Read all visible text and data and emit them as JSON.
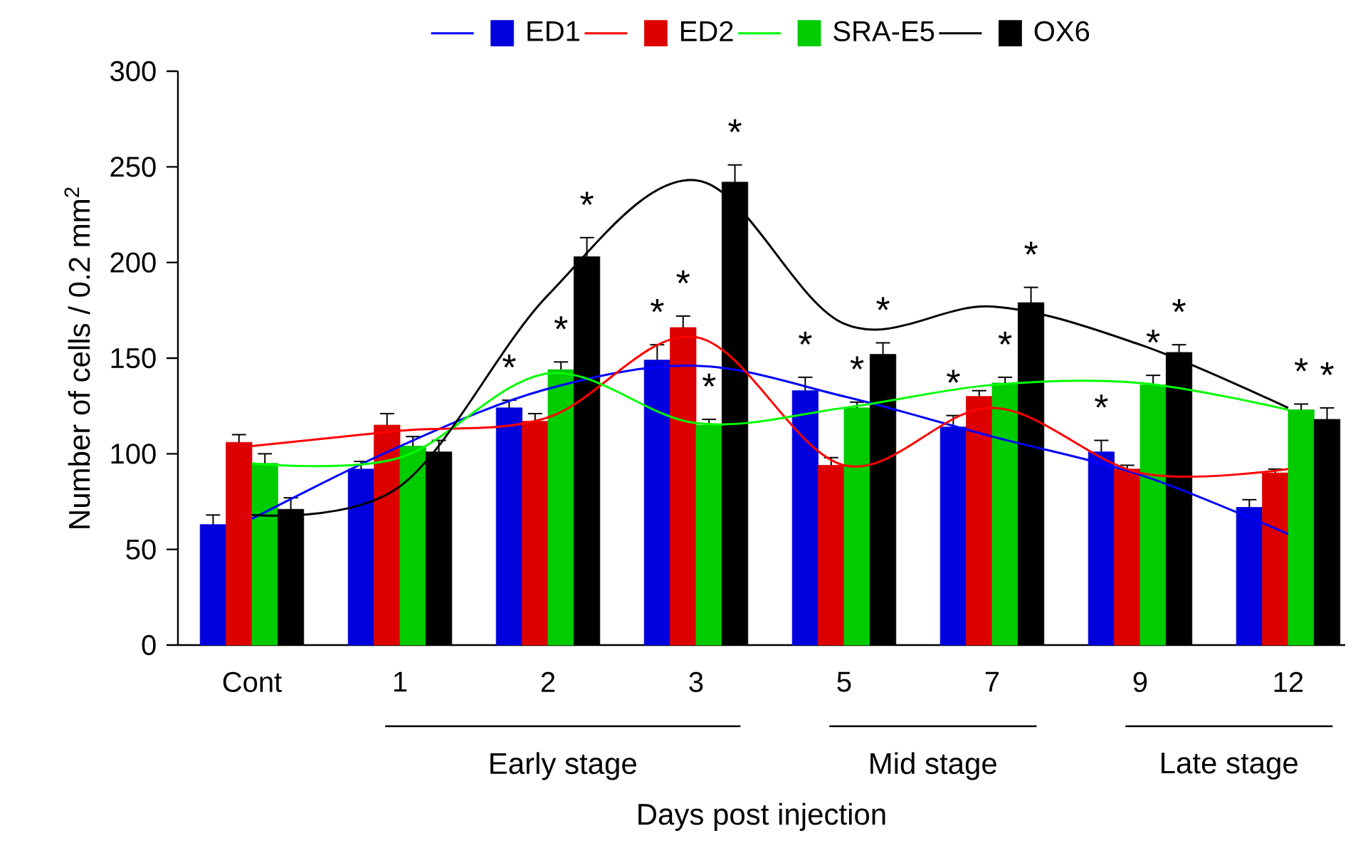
{
  "chart_data": {
    "type": "bar",
    "categories": [
      "Cont",
      "1",
      "2",
      "3",
      "5",
      "7",
      "9",
      "12"
    ],
    "xlabel": "Days post injection",
    "ylabel": "Number of cells / 0.2 mm$^{2}$",
    "ylim": [
      0,
      300
    ],
    "yticks": [
      0,
      50,
      100,
      150,
      200,
      250,
      300
    ],
    "legend": "top",
    "annotations": [
      "Early stage",
      "Mid stage",
      "Late stage"
    ],
    "series": [
      {
        "name": "ED1",
        "color": "#0000dd",
        "values": [
          63,
          92,
          124,
          149,
          133,
          114,
          101,
          72
        ],
        "errors": [
          5,
          4,
          4,
          8,
          7,
          6,
          6,
          4
        ],
        "value_labels": [
          null,
          null,
          "*",
          "*",
          "*",
          "*",
          "*",
          null
        ]
      },
      {
        "name": "ED2",
        "color": "#dd0000",
        "values": [
          106,
          115,
          117,
          166,
          94,
          130,
          92,
          90
        ],
        "errors": [
          4,
          6,
          4,
          6,
          4,
          3,
          2,
          2
        ],
        "value_labels": [
          null,
          null,
          null,
          "*",
          null,
          null,
          null,
          null
        ]
      },
      {
        "name": "SRA-E5",
        "color": "#00cc00",
        "values": [
          95,
          104,
          144,
          115,
          124,
          137,
          136,
          123
        ],
        "errors": [
          5,
          5,
          4,
          3,
          3,
          3,
          5,
          3
        ],
        "value_labels": [
          null,
          null,
          "*",
          "*",
          "*",
          "*",
          "*",
          "*"
        ]
      },
      {
        "name": "OX6",
        "color": "#000000",
        "values": [
          71,
          101,
          203,
          242,
          152,
          179,
          153,
          118
        ],
        "errors": [
          6,
          6,
          10,
          9,
          6,
          8,
          4,
          6
        ],
        "value_labels": [
          null,
          null,
          "*",
          "*",
          "*",
          "*",
          "*",
          "*"
        ]
      },
      {
        "type": "line",
        "color": "#0000ff",
        "values": [
          66,
          104,
          134,
          146,
          130,
          109,
          89,
          58
        ]
      },
      {
        "type": "line",
        "color": "#ff0000",
        "values": [
          104,
          112,
          119,
          161,
          94,
          124,
          90,
          92
        ]
      },
      {
        "type": "line",
        "color": "#00ff00",
        "values": [
          95,
          98,
          142,
          116,
          124,
          136,
          137,
          123
        ]
      },
      {
        "type": "line",
        "color": "#000000",
        "values": [
          68,
          83,
          183,
          243,
          168,
          177,
          157,
          124
        ]
      }
    ]
  }
}
